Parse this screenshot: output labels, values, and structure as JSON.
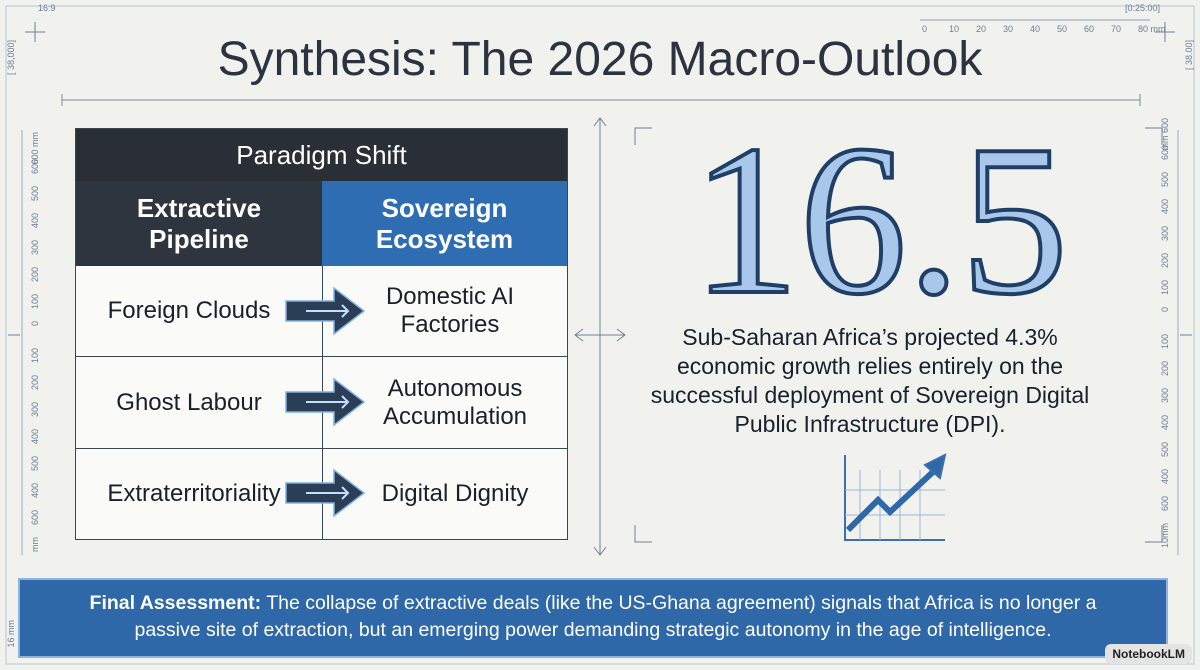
{
  "header": {
    "aspect": "16:9",
    "timer": "[0:25:00]",
    "title": "Synthesis: The 2026 Macro-Outlook",
    "left_marker": "[ 38,000]",
    "right_marker": "[ 38.00]"
  },
  "rulers": {
    "top": [
      "0",
      "10",
      "20",
      "30",
      "40",
      "50",
      "60",
      "70",
      "80 mm"
    ],
    "left": [
      "600 mm",
      "600",
      "500",
      "400",
      "300",
      "200",
      "100",
      "0",
      "100",
      "200",
      "300",
      "400",
      "500",
      "400",
      "600",
      "mm"
    ],
    "right": [
      "mm 600",
      "600",
      "500",
      "400",
      "300",
      "200",
      "100",
      "0",
      "100",
      "200",
      "300",
      "400",
      "500",
      "400",
      "600",
      "10mm"
    ],
    "bottom_left": "16 mm"
  },
  "table": {
    "title": "Paradigm Shift",
    "columns": [
      "Extractive Pipeline",
      "Sovereign Ecosystem"
    ],
    "rows": [
      [
        "Foreign Clouds",
        "Domestic AI Factories"
      ],
      [
        "Ghost Labour",
        "Autonomous Accumulation"
      ],
      [
        "Extraterritoriality",
        "Digital Dignity"
      ]
    ]
  },
  "highlight": {
    "number": 16.5,
    "text": "Sub-Saharan Africa’s projected 4.3% economic growth relies entirely on the successful deployment of Sovereign Digital Public Infrastructure (DPI)."
  },
  "banner": {
    "label": "Final Assessment:",
    "text": "The collapse of extractive deals (like the US-Ghana agreement) signals that Africa is no longer a passive site of extraction, but an emerging power demanding strategic autonomy in the age of intelligence."
  },
  "watermark": "NotebookLM"
}
